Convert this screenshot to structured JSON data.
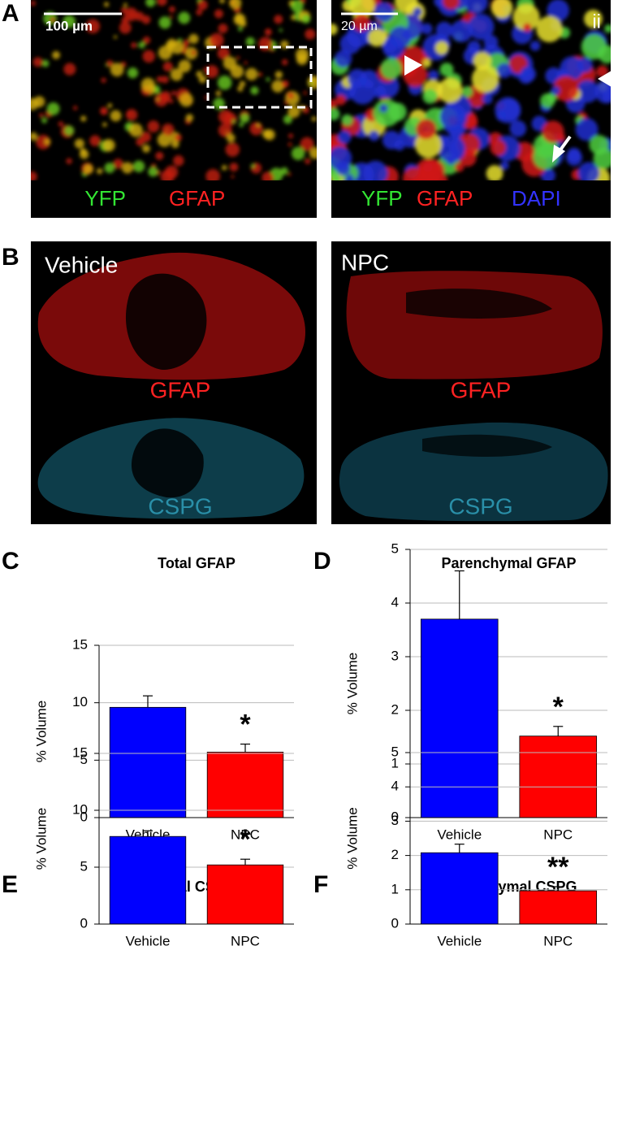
{
  "figure": {
    "panel_a": {
      "letter": "A",
      "left": {
        "scale_bar": "100 µm",
        "labels": [
          "YFP",
          "GFAP"
        ]
      },
      "right": {
        "scale_bar": "20 µm",
        "corner": "ii",
        "labels": [
          "YFP",
          "GFAP",
          "DAPI"
        ]
      }
    },
    "panel_b": {
      "letter": "B",
      "left": {
        "title": "Vehicle",
        "top_label": "GFAP",
        "bottom_label": "CSPG"
      },
      "right": {
        "title": "NPC",
        "top_label": "GFAP",
        "bottom_label": "CSPG"
      }
    }
  },
  "chart_data": [
    {
      "type": "bar",
      "panel": "C",
      "title": "Total GFAP",
      "y_label": "% Volume",
      "categories": [
        "Vehicle",
        "NPC"
      ],
      "values": [
        9.6,
        5.7
      ],
      "errors": [
        1.0,
        0.7
      ],
      "colors": [
        "#0000ff",
        "#ff0000"
      ],
      "ylim": [
        0,
        15
      ],
      "yticks": [
        0,
        5,
        10,
        15
      ],
      "grid": true,
      "annotation": "*"
    },
    {
      "type": "bar",
      "panel": "D",
      "title": "Parenchymal GFAP",
      "y_label": "% Volume",
      "categories": [
        "Vehicle",
        "NPC"
      ],
      "values": [
        3.7,
        1.52
      ],
      "errors": [
        0.9,
        0.18
      ],
      "colors": [
        "#0000ff",
        "#ff0000"
      ],
      "ylim": [
        0,
        5
      ],
      "yticks": [
        0,
        1,
        2,
        3,
        4,
        5
      ],
      "grid": true,
      "annotation": "*"
    },
    {
      "type": "bar",
      "panel": "E",
      "title": "Total CSPG",
      "y_label": "% Volume",
      "categories": [
        "Vehicle",
        "NPC"
      ],
      "values": [
        7.7,
        5.2
      ],
      "errors": [
        0.5,
        0.5
      ],
      "colors": [
        "#0000ff",
        "#ff0000"
      ],
      "ylim": [
        0,
        15
      ],
      "yticks": [
        0,
        5,
        10,
        15
      ],
      "grid": true,
      "annotation": "*"
    },
    {
      "type": "bar",
      "panel": "F",
      "title": "Parenchymal CSPG",
      "y_label": "% Volume",
      "categories": [
        "Vehicle",
        "NPC"
      ],
      "values": [
        2.08,
        0.97
      ],
      "errors": [
        0.25,
        0.12
      ],
      "colors": [
        "#0000ff",
        "#ff0000"
      ],
      "ylim": [
        0,
        5
      ],
      "yticks": [
        0,
        1,
        2,
        3,
        4,
        5
      ],
      "grid": true,
      "annotation": "**"
    }
  ]
}
